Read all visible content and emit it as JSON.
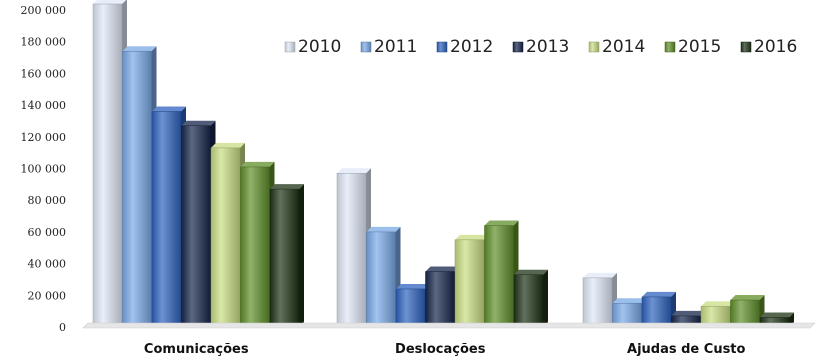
{
  "chart_data": {
    "type": "bar",
    "title": "",
    "xlabel": "",
    "ylabel": "",
    "categories": [
      "Comunicações",
      "Deslocações",
      "Ajudas de Custo"
    ],
    "y_ticks": [
      "0",
      "20 000",
      "40 000",
      "60 000",
      "80 000",
      "100 000",
      "120 000",
      "140 000",
      "160 000",
      "180 000",
      "200 000"
    ],
    "ylim": [
      0,
      200000
    ],
    "grid": false,
    "legend_position": "top-right",
    "series": [
      {
        "name": "2010",
        "color": "#dfe8f7",
        "values": [
          210000,
          97000,
          31000
        ]
      },
      {
        "name": "2011",
        "color": "#79a9e6",
        "values": [
          174000,
          60000,
          15000
        ]
      },
      {
        "name": "2012",
        "color": "#2f63bf",
        "values": [
          136000,
          24000,
          19000
        ]
      },
      {
        "name": "2013",
        "color": "#16264a",
        "values": [
          127000,
          35000,
          7000
        ]
      },
      {
        "name": "2014",
        "color": "#c8dc83",
        "values": [
          113000,
          55000,
          13000
        ]
      },
      {
        "name": "2015",
        "color": "#5f8f2a",
        "values": [
          101000,
          64000,
          17000
        ]
      },
      {
        "name": "2016",
        "color": "#1f3317",
        "values": [
          87000,
          33000,
          6000
        ]
      }
    ]
  }
}
